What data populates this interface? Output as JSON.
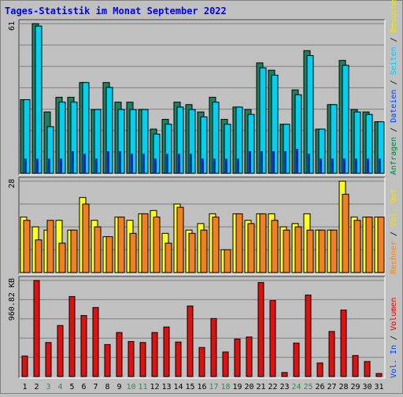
{
  "chart_data": {
    "type": "bar",
    "title": "Tages-Statistik im Monat September 2022",
    "x": [
      "1",
      "2",
      "3",
      "4",
      "5",
      "6",
      "7",
      "8",
      "9",
      "10",
      "11",
      "12",
      "13",
      "14",
      "15",
      "16",
      "17",
      "18",
      "19",
      "20",
      "21",
      "22",
      "23",
      "24",
      "25",
      "26",
      "27",
      "28",
      "29",
      "30",
      "31"
    ],
    "weekend_color": "#2e8b57",
    "weekday_color": "#000000",
    "weekend_days": [
      "3",
      "4",
      "10",
      "11",
      "17",
      "18",
      "24",
      "25"
    ],
    "panels": [
      {
        "name": "requests",
        "max_label": "61",
        "ymax": 61,
        "right_labels": [
          {
            "text": "Anfragen",
            "color": "#008040"
          },
          {
            "text": " / ",
            "color": "#000000"
          },
          {
            "text": "Dateien",
            "color": "#0040ff"
          },
          {
            "text": " / ",
            "color": "#000000"
          },
          {
            "text": "Seiten",
            "color": "#00c8ff"
          },
          {
            "text": " / ",
            "color": "#000000"
          },
          {
            "text": "Besuche",
            "color": "#e8e800"
          }
        ],
        "series": [
          {
            "name": "Anfragen",
            "color": "#1e8060",
            "values": [
              30,
              61,
              25,
              31,
              31,
              37,
              26,
              37,
              29,
              29,
              26,
              18,
              22,
              29,
              28,
              25,
              31,
              22,
              27,
              26,
              45,
              42,
              20,
              34,
              50,
              18,
              28,
              46,
              26,
              25,
              21
            ]
          },
          {
            "name": "Dateien",
            "color": "#00d0f0",
            "values": [
              30,
              60,
              19,
              29,
              29,
              37,
              26,
              35,
              26,
              26,
              26,
              16,
              20,
              27,
              26,
              23,
              29,
              20,
              27,
              24,
              43,
              40,
              20,
              32,
              48,
              18,
              28,
              44,
              25,
              24,
              21
            ]
          },
          {
            "name": "Seiten",
            "color": "#0030c0",
            "values": [
              6,
              6,
              6,
              6,
              9,
              8,
              6,
              9,
              9,
              8,
              8,
              6,
              8,
              8,
              8,
              6,
              6,
              6,
              6,
              9,
              9,
              9,
              9,
              10,
              8,
              6,
              6,
              6,
              6,
              6,
              6
            ]
          }
        ]
      },
      {
        "name": "visits",
        "max_label": "28",
        "ymax": 28,
        "right_labels": [
          {
            "text": "Rechner",
            "color": "#ff8000"
          },
          {
            "text": " / ",
            "color": "#000000"
          },
          {
            "text": "Vol. Out",
            "color": "#e8e800"
          }
        ],
        "series": [
          {
            "name": "Besuche",
            "color": "#ffff20",
            "values": [
              17,
              14,
              13,
              16,
              13,
              23,
              16,
              11,
              17,
              16,
              18,
              19,
              12,
              21,
              13,
              15,
              18,
              7,
              18,
              16,
              18,
              18,
              14,
              15,
              18,
              13,
              13,
              28,
              17,
              17,
              17
            ]
          },
          {
            "name": "Rechner",
            "color": "#f08020",
            "values": [
              16,
              10,
              16,
              9,
              13,
              21,
              14,
              11,
              17,
              12,
              18,
              17,
              9,
              20,
              12,
              13,
              17,
              7,
              18,
              15,
              18,
              16,
              13,
              14,
              13,
              13,
              13,
              24,
              16,
              17,
              17
            ]
          }
        ]
      },
      {
        "name": "volume",
        "max_label": "960.82 KB",
        "ymax": 960.82,
        "right_labels": [
          {
            "text": "Vol. In",
            "color": "#0040ff"
          },
          {
            "text": " / ",
            "color": "#000000"
          },
          {
            "text": "Volumen",
            "color": "#e00000"
          }
        ],
        "series": [
          {
            "name": "Volumen",
            "color": "#e01010",
            "values": [
              205,
              960,
              340,
              510,
              800,
              610,
              690,
              320,
              440,
              350,
              340,
              440,
              495,
              345,
              705,
              290,
              580,
              245,
              375,
              395,
              940,
              760,
              40,
              335,
              815,
              135,
              450,
              665,
              210,
              150,
              30
            ]
          }
        ]
      }
    ]
  }
}
